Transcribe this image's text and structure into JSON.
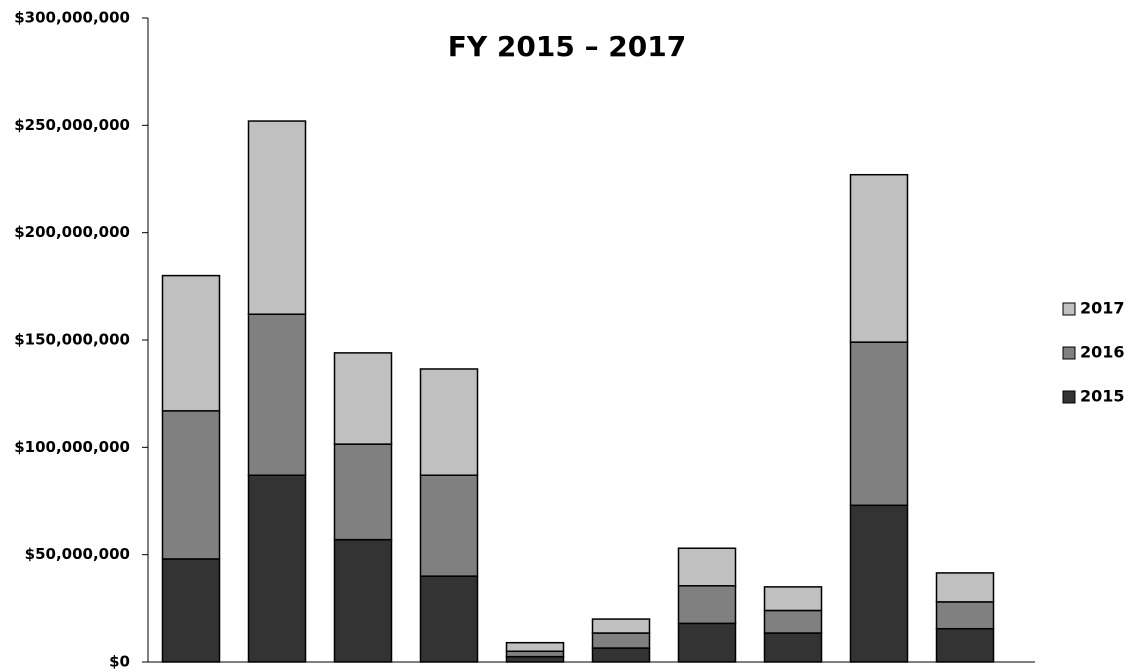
{
  "chart_data": {
    "type": "stacked_bar",
    "title": "FY 2015 – 2017",
    "categories": [
      null,
      null,
      null,
      null,
      null,
      null,
      null,
      null,
      null,
      null
    ],
    "series": [
      {
        "name": "2015",
        "color": "#333333",
        "values": [
          48000000,
          87000000,
          57000000,
          40000000,
          2500000,
          6500000,
          18000000,
          13500000,
          73000000,
          15500000
        ]
      },
      {
        "name": "2016",
        "color": "#808080",
        "values": [
          69000000,
          75000000,
          44500000,
          47000000,
          2500000,
          7000000,
          17500000,
          10500000,
          76000000,
          12500000
        ]
      },
      {
        "name": "2017",
        "color": "#c0c0c0",
        "values": [
          63000000,
          90000000,
          42500000,
          49500000,
          4000000,
          6500000,
          17500000,
          11000000,
          78000000,
          13500000
        ]
      }
    ],
    "ylim": [
      0,
      300000000
    ],
    "yticks": [
      {
        "value": 0,
        "label": "$0"
      },
      {
        "value": 50000000,
        "label": "$50,000,000"
      },
      {
        "value": 100000000,
        "label": "$100,000,000"
      },
      {
        "value": 150000000,
        "label": "$150,000,000"
      },
      {
        "value": 200000000,
        "label": "$200,000,000"
      },
      {
        "value": 250000000,
        "label": "$250,000,000"
      },
      {
        "value": 300000000,
        "label": "$300,000,000"
      }
    ],
    "grid": false,
    "legend": "right"
  }
}
